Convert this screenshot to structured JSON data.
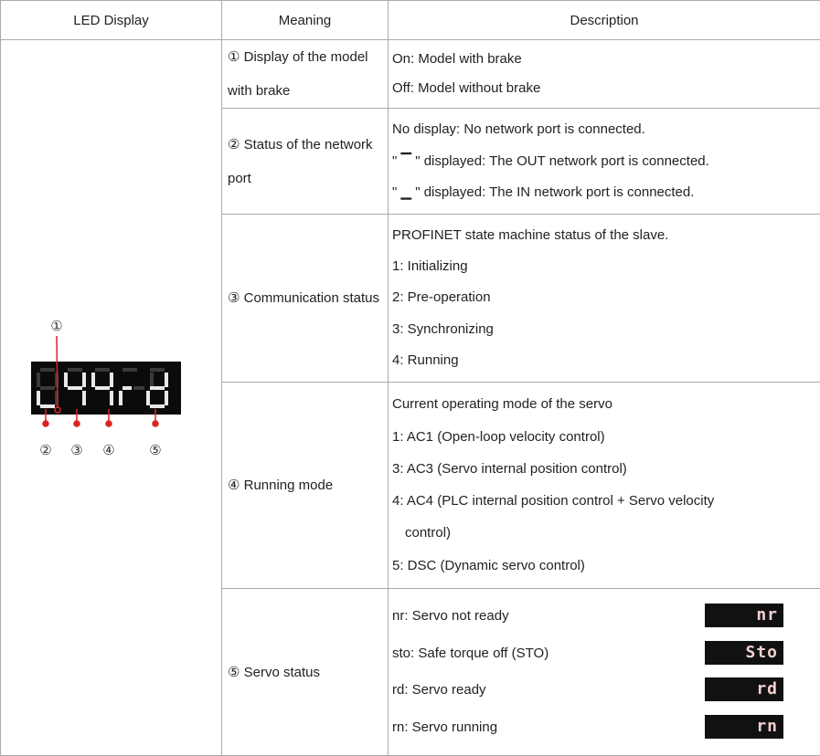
{
  "table": {
    "headers": [
      "LED Display",
      "Meaning",
      "Description"
    ],
    "rows": [
      {
        "meaning": "① Display of the model with brake",
        "description": [
          "On: Model with brake",
          "Off: Model without brake"
        ]
      },
      {
        "meaning": "② Status of the network port",
        "description": [
          "No display: No network port is connected.",
          "\" ▔ \" displayed: The OUT network port is connected.",
          "\" ▁ \" displayed: The IN network port is connected."
        ]
      },
      {
        "meaning": "③ Communication status",
        "description": [
          "PROFINET state machine status of the slave.",
          "1: Initializing",
          "2: Pre-operation",
          "3: Synchronizing",
          "4: Running"
        ]
      },
      {
        "meaning": "④ Running mode",
        "description": [
          "Current operating mode of the servo",
          "1: AC1 (Open-loop velocity control)",
          "3: AC3 (Servo internal position control)",
          "4: AC4 (PLC internal position control + Servo velocity",
          "control)",
          "5: DSC (Dynamic servo control)"
        ]
      },
      {
        "meaning": "⑤ Servo status",
        "description": [
          "nr: Servo not ready",
          "sto: Safe torque off (STO)",
          "rd: Servo ready",
          "rn: Servo running"
        ],
        "displays": [
          "nr",
          "Sto",
          "rd",
          "rn"
        ]
      }
    ]
  },
  "led": {
    "callouts": [
      "①",
      "②",
      "③",
      "④",
      "⑤"
    ]
  }
}
